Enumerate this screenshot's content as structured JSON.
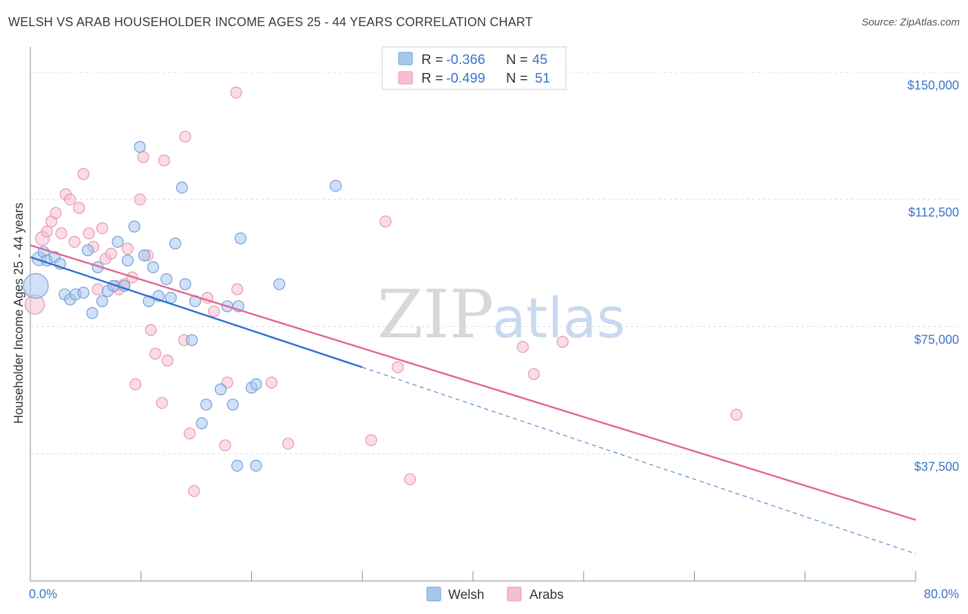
{
  "title": "WELSH VS ARAB HOUSEHOLDER INCOME AGES 25 - 44 YEARS CORRELATION CHART",
  "source": "Source: ZipAtlas.com",
  "watermark": {
    "zip": "ZIP",
    "atlas": "atlas"
  },
  "legend": {
    "welsh": {
      "r_label": "R = ",
      "r_value": "-0.366",
      "n_label": "N = ",
      "n_value": "45"
    },
    "arabs": {
      "r_label": "R = ",
      "r_value": "-0.499",
      "n_label": "N = ",
      "n_value": "51"
    }
  },
  "bottom_legend": {
    "welsh": "Welsh",
    "arabs": "Arabs"
  },
  "colors": {
    "welsh_fill": "#a9c7ee",
    "welsh_stroke": "#6f9fd8",
    "welsh_line": "#2f6fce",
    "arabs_fill": "#f6bfd0",
    "arabs_stroke": "#e994b1",
    "arabs_line": "#e06690",
    "tick_color": "#3d73c9",
    "grid": "#dddddd"
  },
  "chart_data": {
    "type": "scatter",
    "title": "WELSH VS ARAB HOUSEHOLDER INCOME AGES 25 - 44 YEARS CORRELATION CHART",
    "xlabel": "",
    "ylabel": "Householder Income Ages 25 - 44 years",
    "xlim": [
      0,
      80
    ],
    "ylim": [
      0,
      157500
    ],
    "x_tick_labels": [
      {
        "value": 0,
        "label": "0.0%"
      },
      {
        "value": 80,
        "label": "80.0%"
      }
    ],
    "y_ticks": [
      {
        "value": 37500,
        "label": "$37,500"
      },
      {
        "value": 75000,
        "label": "$75,000"
      },
      {
        "value": 112500,
        "label": "$112,500"
      },
      {
        "value": 150000,
        "label": "$150,000"
      }
    ],
    "grid": true,
    "legend_position": "top-center",
    "series": [
      {
        "name": "Welsh",
        "r": -0.366,
        "n": 45,
        "trend": {
          "x0": 0,
          "y0": 95500,
          "x1": 30,
          "y1": 63000,
          "dashed_to_x": 80,
          "dashed_to_y": 8000
        },
        "points": [
          [
            0.5,
            87000,
            18
          ],
          [
            0.8,
            95000,
            10
          ],
          [
            1.2,
            97000,
            8
          ],
          [
            1.5,
            94500,
            8
          ],
          [
            2.2,
            95500,
            8
          ],
          [
            2.7,
            93500,
            8
          ],
          [
            3.1,
            84500,
            8
          ],
          [
            3.6,
            83000,
            8
          ],
          [
            4.1,
            84500,
            8
          ],
          [
            4.8,
            85000,
            8
          ],
          [
            5.2,
            97500,
            8
          ],
          [
            5.6,
            79000,
            8
          ],
          [
            6.1,
            92500,
            8
          ],
          [
            6.5,
            82500,
            8
          ],
          [
            7.0,
            85500,
            8
          ],
          [
            7.5,
            87000,
            8
          ],
          [
            7.9,
            100000,
            8
          ],
          [
            8.5,
            87000,
            8
          ],
          [
            8.8,
            94500,
            8
          ],
          [
            9.4,
            104500,
            8
          ],
          [
            9.9,
            128000,
            8
          ],
          [
            10.3,
            96000,
            8
          ],
          [
            10.7,
            82500,
            8
          ],
          [
            11.1,
            92500,
            8
          ],
          [
            11.6,
            84000,
            8
          ],
          [
            12.3,
            89000,
            8
          ],
          [
            12.7,
            83500,
            8
          ],
          [
            13.1,
            99500,
            8
          ],
          [
            13.7,
            116000,
            8
          ],
          [
            14.0,
            87500,
            8
          ],
          [
            14.9,
            82500,
            8
          ],
          [
            14.6,
            71000,
            8
          ],
          [
            15.5,
            46500,
            8
          ],
          [
            15.9,
            52000,
            8
          ],
          [
            17.2,
            56500,
            8
          ],
          [
            17.8,
            81000,
            8
          ],
          [
            18.3,
            52000,
            8
          ],
          [
            18.8,
            81000,
            8
          ],
          [
            19.0,
            101000,
            8
          ],
          [
            20.0,
            57000,
            8
          ],
          [
            20.4,
            58000,
            8
          ],
          [
            18.7,
            34000,
            8
          ],
          [
            20.4,
            34000,
            8
          ],
          [
            22.5,
            87500,
            8
          ],
          [
            27.6,
            116500,
            8
          ]
        ]
      },
      {
        "name": "Arabs",
        "r": -0.499,
        "n": 51,
        "trend": {
          "x0": 0,
          "y0": 99000,
          "x1": 80,
          "y1": 18000
        },
        "points": [
          [
            0.4,
            81500,
            14
          ],
          [
            1.1,
            101000,
            10
          ],
          [
            1.5,
            103000,
            8
          ],
          [
            1.9,
            106000,
            8
          ],
          [
            2.3,
            108500,
            8
          ],
          [
            2.8,
            102500,
            8
          ],
          [
            3.2,
            114000,
            8
          ],
          [
            3.6,
            112500,
            8
          ],
          [
            4.0,
            100000,
            8
          ],
          [
            4.4,
            110000,
            8
          ],
          [
            4.8,
            120000,
            8
          ],
          [
            5.3,
            102500,
            8
          ],
          [
            5.7,
            98500,
            8
          ],
          [
            6.1,
            86000,
            8
          ],
          [
            6.5,
            104000,
            8
          ],
          [
            6.8,
            95000,
            8
          ],
          [
            7.3,
            96500,
            8
          ],
          [
            7.7,
            87000,
            8
          ],
          [
            8.0,
            86000,
            8
          ],
          [
            8.5,
            87500,
            8
          ],
          [
            8.8,
            98000,
            8
          ],
          [
            9.2,
            89500,
            8
          ],
          [
            9.5,
            58000,
            8
          ],
          [
            9.9,
            112500,
            8
          ],
          [
            10.2,
            125000,
            8
          ],
          [
            10.6,
            96000,
            8
          ],
          [
            10.9,
            74000,
            8
          ],
          [
            11.3,
            67000,
            8
          ],
          [
            11.9,
            52500,
            8
          ],
          [
            12.4,
            65000,
            8
          ],
          [
            12.1,
            124000,
            8
          ],
          [
            13.9,
            71000,
            8
          ],
          [
            14.0,
            131000,
            8
          ],
          [
            14.4,
            43500,
            8
          ],
          [
            14.8,
            26500,
            8
          ],
          [
            16.0,
            83500,
            8
          ],
          [
            16.6,
            79500,
            8
          ],
          [
            17.6,
            40000,
            8
          ],
          [
            17.8,
            58500,
            8
          ],
          [
            18.7,
            86000,
            8
          ],
          [
            18.6,
            144000,
            8
          ],
          [
            21.8,
            58500,
            8
          ],
          [
            23.3,
            40500,
            8
          ],
          [
            30.8,
            41500,
            8
          ],
          [
            32.1,
            106000,
            8
          ],
          [
            33.2,
            63000,
            8
          ],
          [
            34.3,
            30000,
            8
          ],
          [
            44.5,
            69000,
            8
          ],
          [
            45.5,
            61000,
            8
          ],
          [
            48.1,
            70500,
            8
          ],
          [
            63.8,
            49000,
            8
          ]
        ]
      }
    ]
  }
}
